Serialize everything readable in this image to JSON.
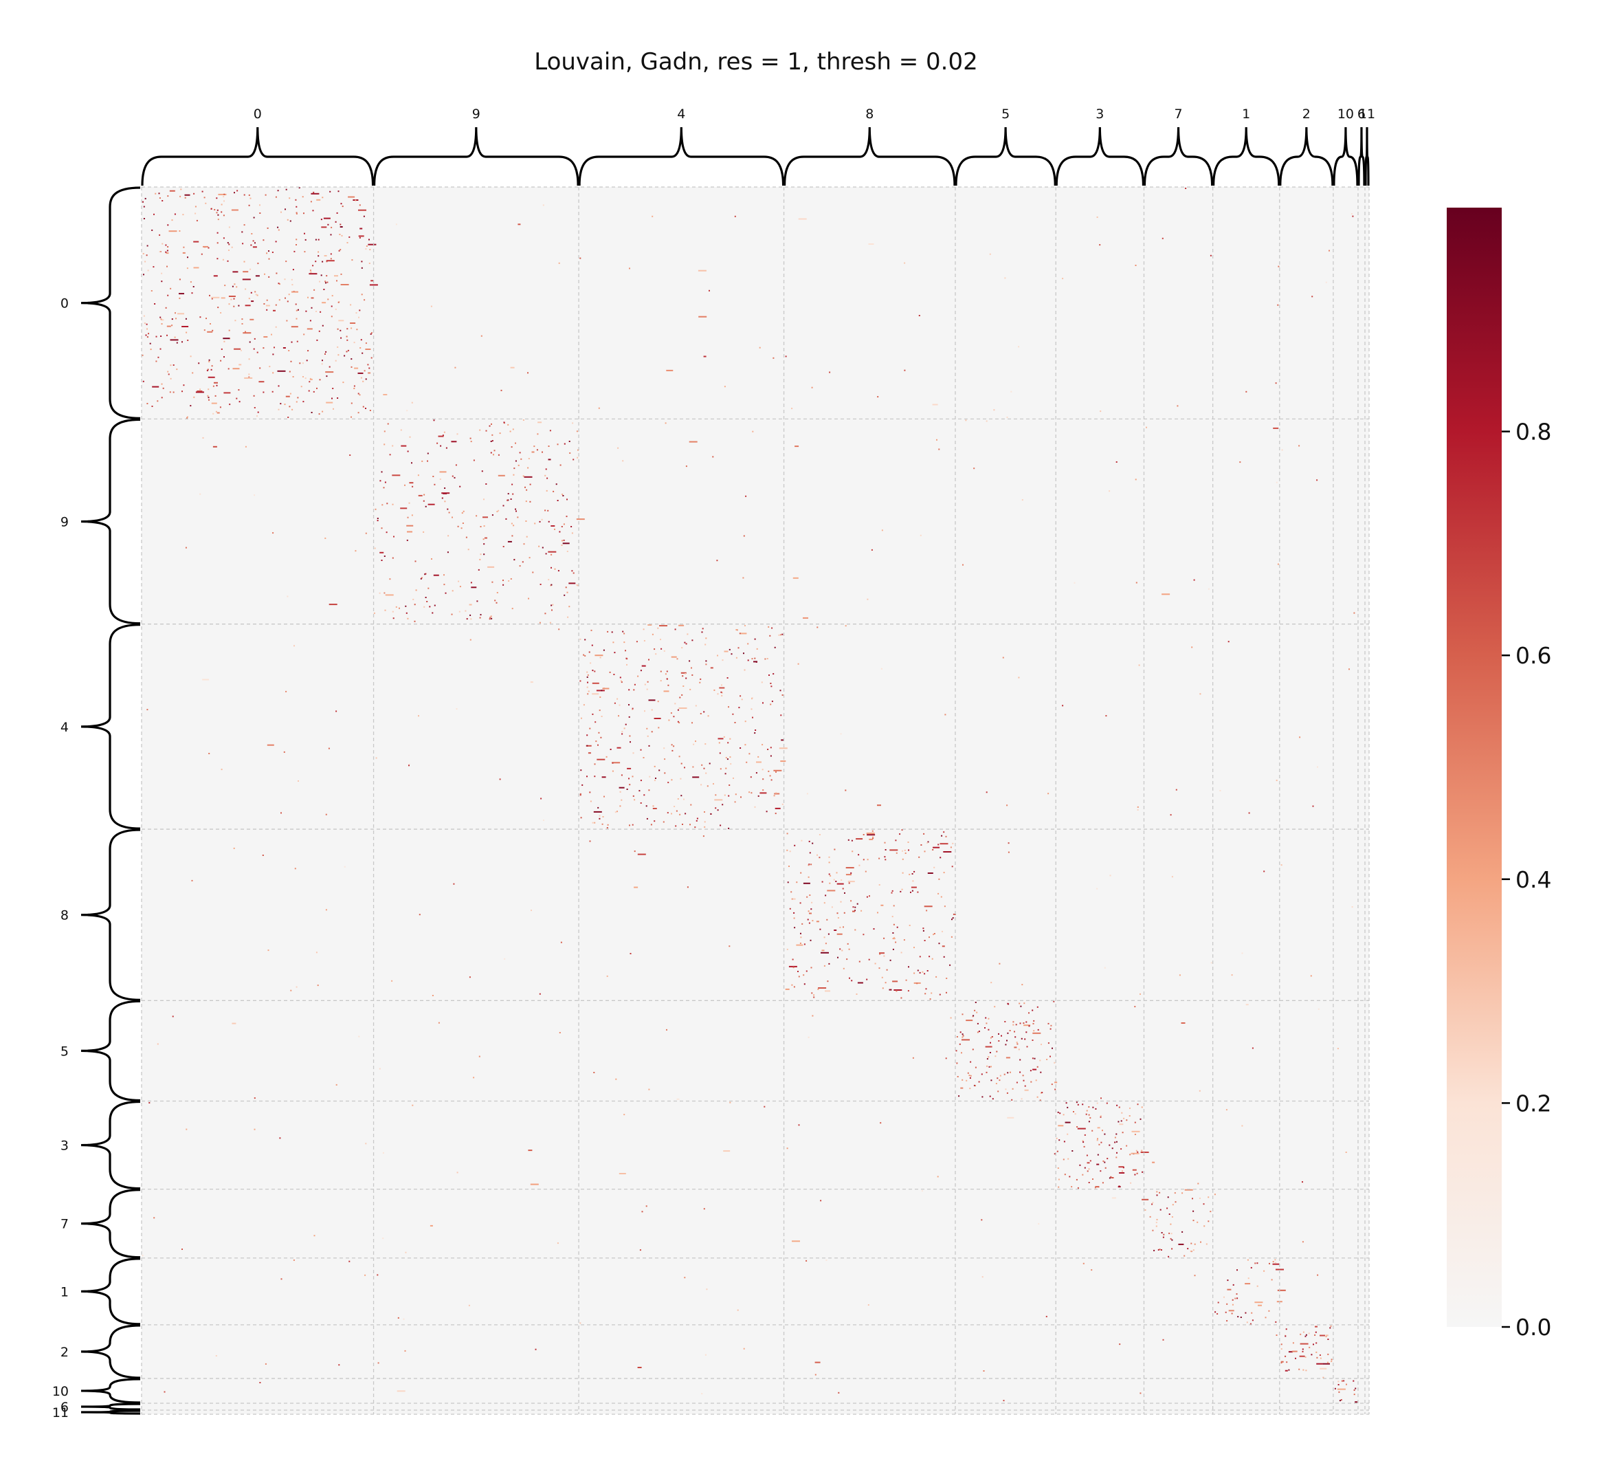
{
  "chart_data": {
    "type": "heatmap",
    "title": "Louvain, Gadn, res = 1, thresh = 0.02",
    "xlabel": "",
    "ylabel": "",
    "clusters": [
      {
        "label": "0",
        "size": 337
      },
      {
        "label": "9",
        "size": 298
      },
      {
        "label": "4",
        "size": 298
      },
      {
        "label": "8",
        "size": 249
      },
      {
        "label": "5",
        "size": 146
      },
      {
        "label": "3",
        "size": 128
      },
      {
        "label": "7",
        "size": 100
      },
      {
        "label": "1",
        "size": 97
      },
      {
        "label": "2",
        "size": 78
      },
      {
        "label": "10",
        "size": 36
      },
      {
        "label": "6",
        "size": 10
      },
      {
        "label": "11",
        "size": 6
      }
    ],
    "value_range": [
      0,
      1
    ],
    "colorbar": {
      "colormap": [
        "#f6f6f6",
        "#fbe3d6",
        "#f4a582",
        "#d6604d",
        "#b2182b",
        "#67001f"
      ],
      "ticks": [
        0.0,
        0.2,
        0.4,
        0.6,
        0.8
      ],
      "tick_labels": [
        "0.0",
        "0.2",
        "0.4",
        "0.6",
        "0.8"
      ]
    },
    "background_color": "#f5f5f5",
    "gridlines": "dashed cluster boundaries",
    "block_density": {
      "diagonal": [
        0.075,
        0.055,
        0.07,
        0.07,
        0.11,
        0.12,
        0.09,
        0.08,
        0.14,
        0.18,
        0.05,
        0.05
      ],
      "off_diagonal": 0.002
    }
  }
}
